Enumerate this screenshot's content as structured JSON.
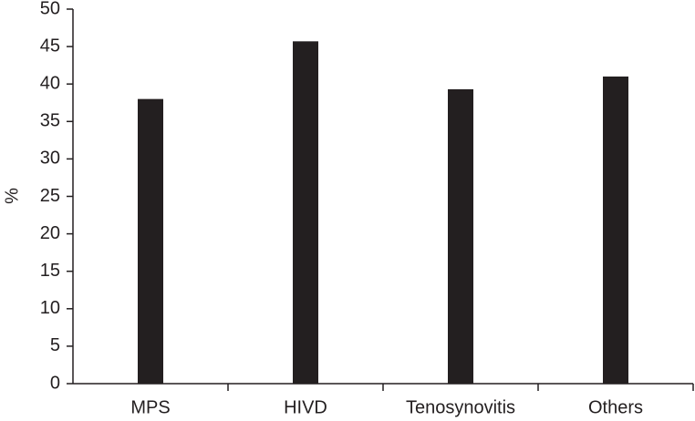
{
  "chart_data": {
    "type": "bar",
    "y_label": "%",
    "categories": [
      "MPS",
      "HIVD",
      "Tenosynovitis",
      "Others"
    ],
    "values": [
      38,
      45.7,
      39.3,
      41
    ],
    "color": "#231f20",
    "ylim": [
      0,
      50
    ],
    "yticks": [
      0,
      5,
      10,
      15,
      20,
      25,
      30,
      35,
      40,
      45,
      50
    ],
    "grid": false
  }
}
